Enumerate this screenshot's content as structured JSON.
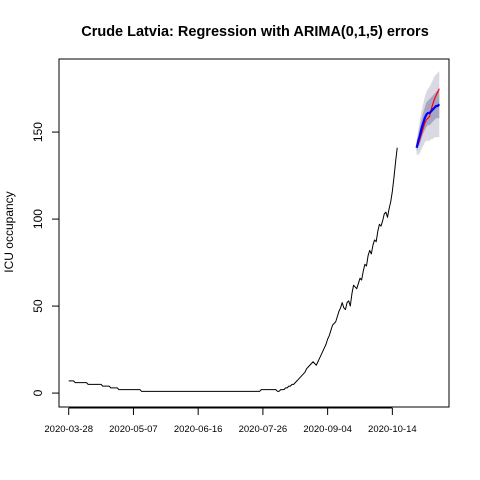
{
  "chart_data": {
    "type": "line",
    "title": "Crude Latvia: Regression with ARIMA(0,1,5) errors",
    "xlabel": "",
    "ylabel": "ICU occupancy",
    "x_start": "2020-03-28",
    "x_end": "2020-11-12",
    "xlim": [
      "2020-03-22",
      "2020-11-18"
    ],
    "ylim": [
      -8,
      192
    ],
    "x_ticks": [
      "2020-03-28",
      "2020-05-07",
      "2020-06-16",
      "2020-07-26",
      "2020-09-04",
      "2020-10-14"
    ],
    "y_ticks": [
      0,
      50,
      100,
      150
    ],
    "grid": false,
    "legend": "none",
    "colors": {
      "observed": "#000000",
      "forecast": "#0000ff",
      "actual": "#ff0000",
      "interval_outer": "#d9d9e3",
      "interval_inner": "#a6a6c4"
    },
    "series": [
      {
        "role": "observed",
        "start": "2020-03-28",
        "values": [
          7,
          7,
          7,
          7,
          6,
          6,
          6,
          6,
          6,
          6,
          6,
          6,
          5,
          5,
          5,
          5,
          5,
          5,
          5,
          5,
          5,
          4,
          4,
          4,
          4,
          4,
          3,
          3,
          3,
          3,
          3,
          2,
          2,
          2,
          2,
          2,
          2,
          2,
          2,
          2,
          2,
          2,
          2,
          2,
          2,
          1,
          1,
          1,
          1,
          1,
          1,
          1,
          1,
          1,
          1,
          1,
          1,
          1,
          1,
          1,
          1,
          1,
          1,
          1,
          1,
          1,
          1,
          1,
          1,
          1,
          1,
          1,
          1,
          1,
          1,
          1,
          1,
          1,
          1,
          1,
          1,
          1,
          1,
          1,
          1,
          1,
          1,
          1,
          1,
          1,
          1,
          1,
          1,
          1,
          1,
          1,
          1,
          1,
          1,
          1,
          1,
          1,
          1,
          1,
          1,
          1,
          1,
          1,
          1,
          1,
          1,
          1,
          1,
          1,
          1,
          1,
          1,
          1,
          1,
          2,
          2,
          2,
          2,
          2,
          2,
          2,
          2,
          2,
          2,
          1,
          1,
          2,
          2,
          2,
          3,
          3,
          4,
          4,
          5,
          5,
          6,
          7,
          8,
          9,
          10,
          11,
          12,
          14,
          15,
          16,
          17,
          18,
          17,
          16,
          18,
          20,
          22,
          24,
          26,
          28,
          31,
          33,
          36,
          39,
          40,
          41,
          44,
          47,
          49,
          52,
          49,
          48,
          52,
          53,
          50,
          57,
          62,
          61,
          60,
          63,
          66,
          65,
          70,
          74,
          73,
          79,
          82,
          80,
          85,
          88,
          87,
          93,
          97,
          96,
          99,
          103,
          104,
          101,
          106,
          110,
          116,
          124,
          133,
          141
        ]
      },
      {
        "role": "forecast",
        "start": "2020-10-29",
        "values": [
          141,
          145,
          148,
          152,
          155,
          158,
          160,
          161,
          161,
          162,
          163,
          164,
          165,
          165,
          166
        ]
      },
      {
        "role": "actual",
        "start": "2020-10-29",
        "values": [
          141,
          143,
          146,
          149,
          152,
          155,
          157,
          158,
          159,
          163,
          166,
          169,
          171,
          173,
          175
        ]
      },
      {
        "role": "interval_outer",
        "start": "2020-10-29",
        "lower": [
          137,
          137,
          138,
          140,
          142,
          144,
          145,
          145,
          145,
          146,
          146,
          147,
          147,
          147,
          147
        ],
        "upper": [
          145,
          151,
          157,
          162,
          166,
          170,
          173,
          175,
          176,
          178,
          180,
          182,
          183,
          184,
          185
        ]
      },
      {
        "role": "interval_inner",
        "start": "2020-10-29",
        "lower": [
          139,
          141,
          143,
          146,
          149,
          151,
          153,
          154,
          154,
          155,
          156,
          157,
          158,
          158,
          158
        ],
        "upper": [
          143,
          149,
          153,
          157,
          161,
          164,
          167,
          168,
          169,
          170,
          171,
          172,
          173,
          174,
          175
        ]
      }
    ]
  }
}
